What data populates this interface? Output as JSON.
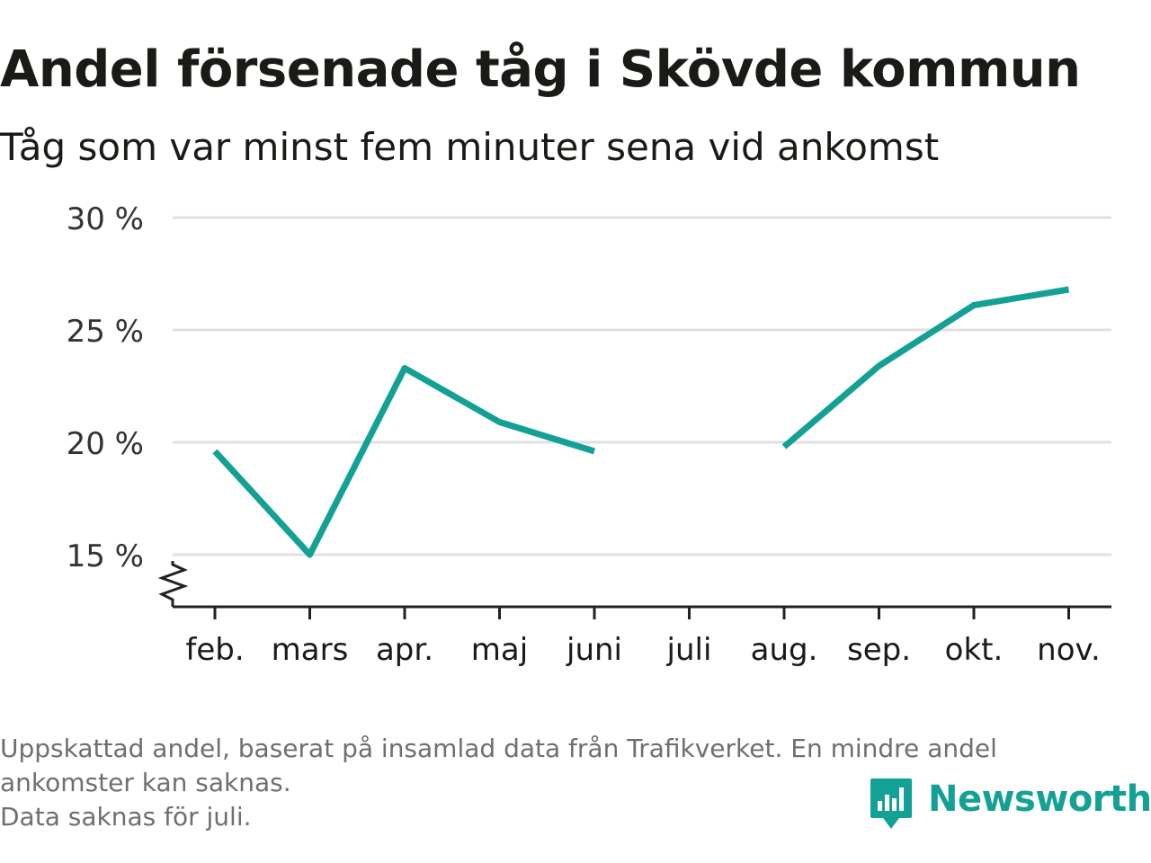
{
  "title": "Andel försenade tåg i Skövde kommun",
  "subtitle": "Tåg som var minst fem minuter sena vid ankomst",
  "chart_data": {
    "type": "line",
    "title": "Andel försenade tåg i Skövde kommun",
    "subtitle": "Tåg som var minst fem minuter sena vid ankomst",
    "xlabel": "",
    "ylabel": "",
    "categories": [
      "feb.",
      "mars",
      "apr.",
      "maj",
      "juni",
      "juli",
      "aug.",
      "sep.",
      "okt.",
      "nov."
    ],
    "series": [
      {
        "values": [
          19.6,
          15.0,
          23.3,
          20.9,
          19.6,
          null,
          19.8,
          23.4,
          26.1,
          26.8
        ]
      }
    ],
    "yticks": [
      15,
      20,
      25,
      30
    ],
    "ytick_labels": [
      "15 %",
      "20 %",
      "25 %",
      "30 %"
    ],
    "ylim": [
      12.7,
      30
    ],
    "y_axis_break": true,
    "grid": true,
    "line_color": "#14a195",
    "grid_color": "#e0e0e0",
    "axis_color": "#222222"
  },
  "footnote": {
    "lines": [
      "Uppskattad andel, baserat på insamlad data från Trafikverket. En mindre andel",
      "ankomster kan saknas.",
      "Data saknas för juli."
    ]
  },
  "brand": {
    "name": "Newsworthy",
    "icon": "newsworthy-logo-icon",
    "color": "#14a195"
  }
}
